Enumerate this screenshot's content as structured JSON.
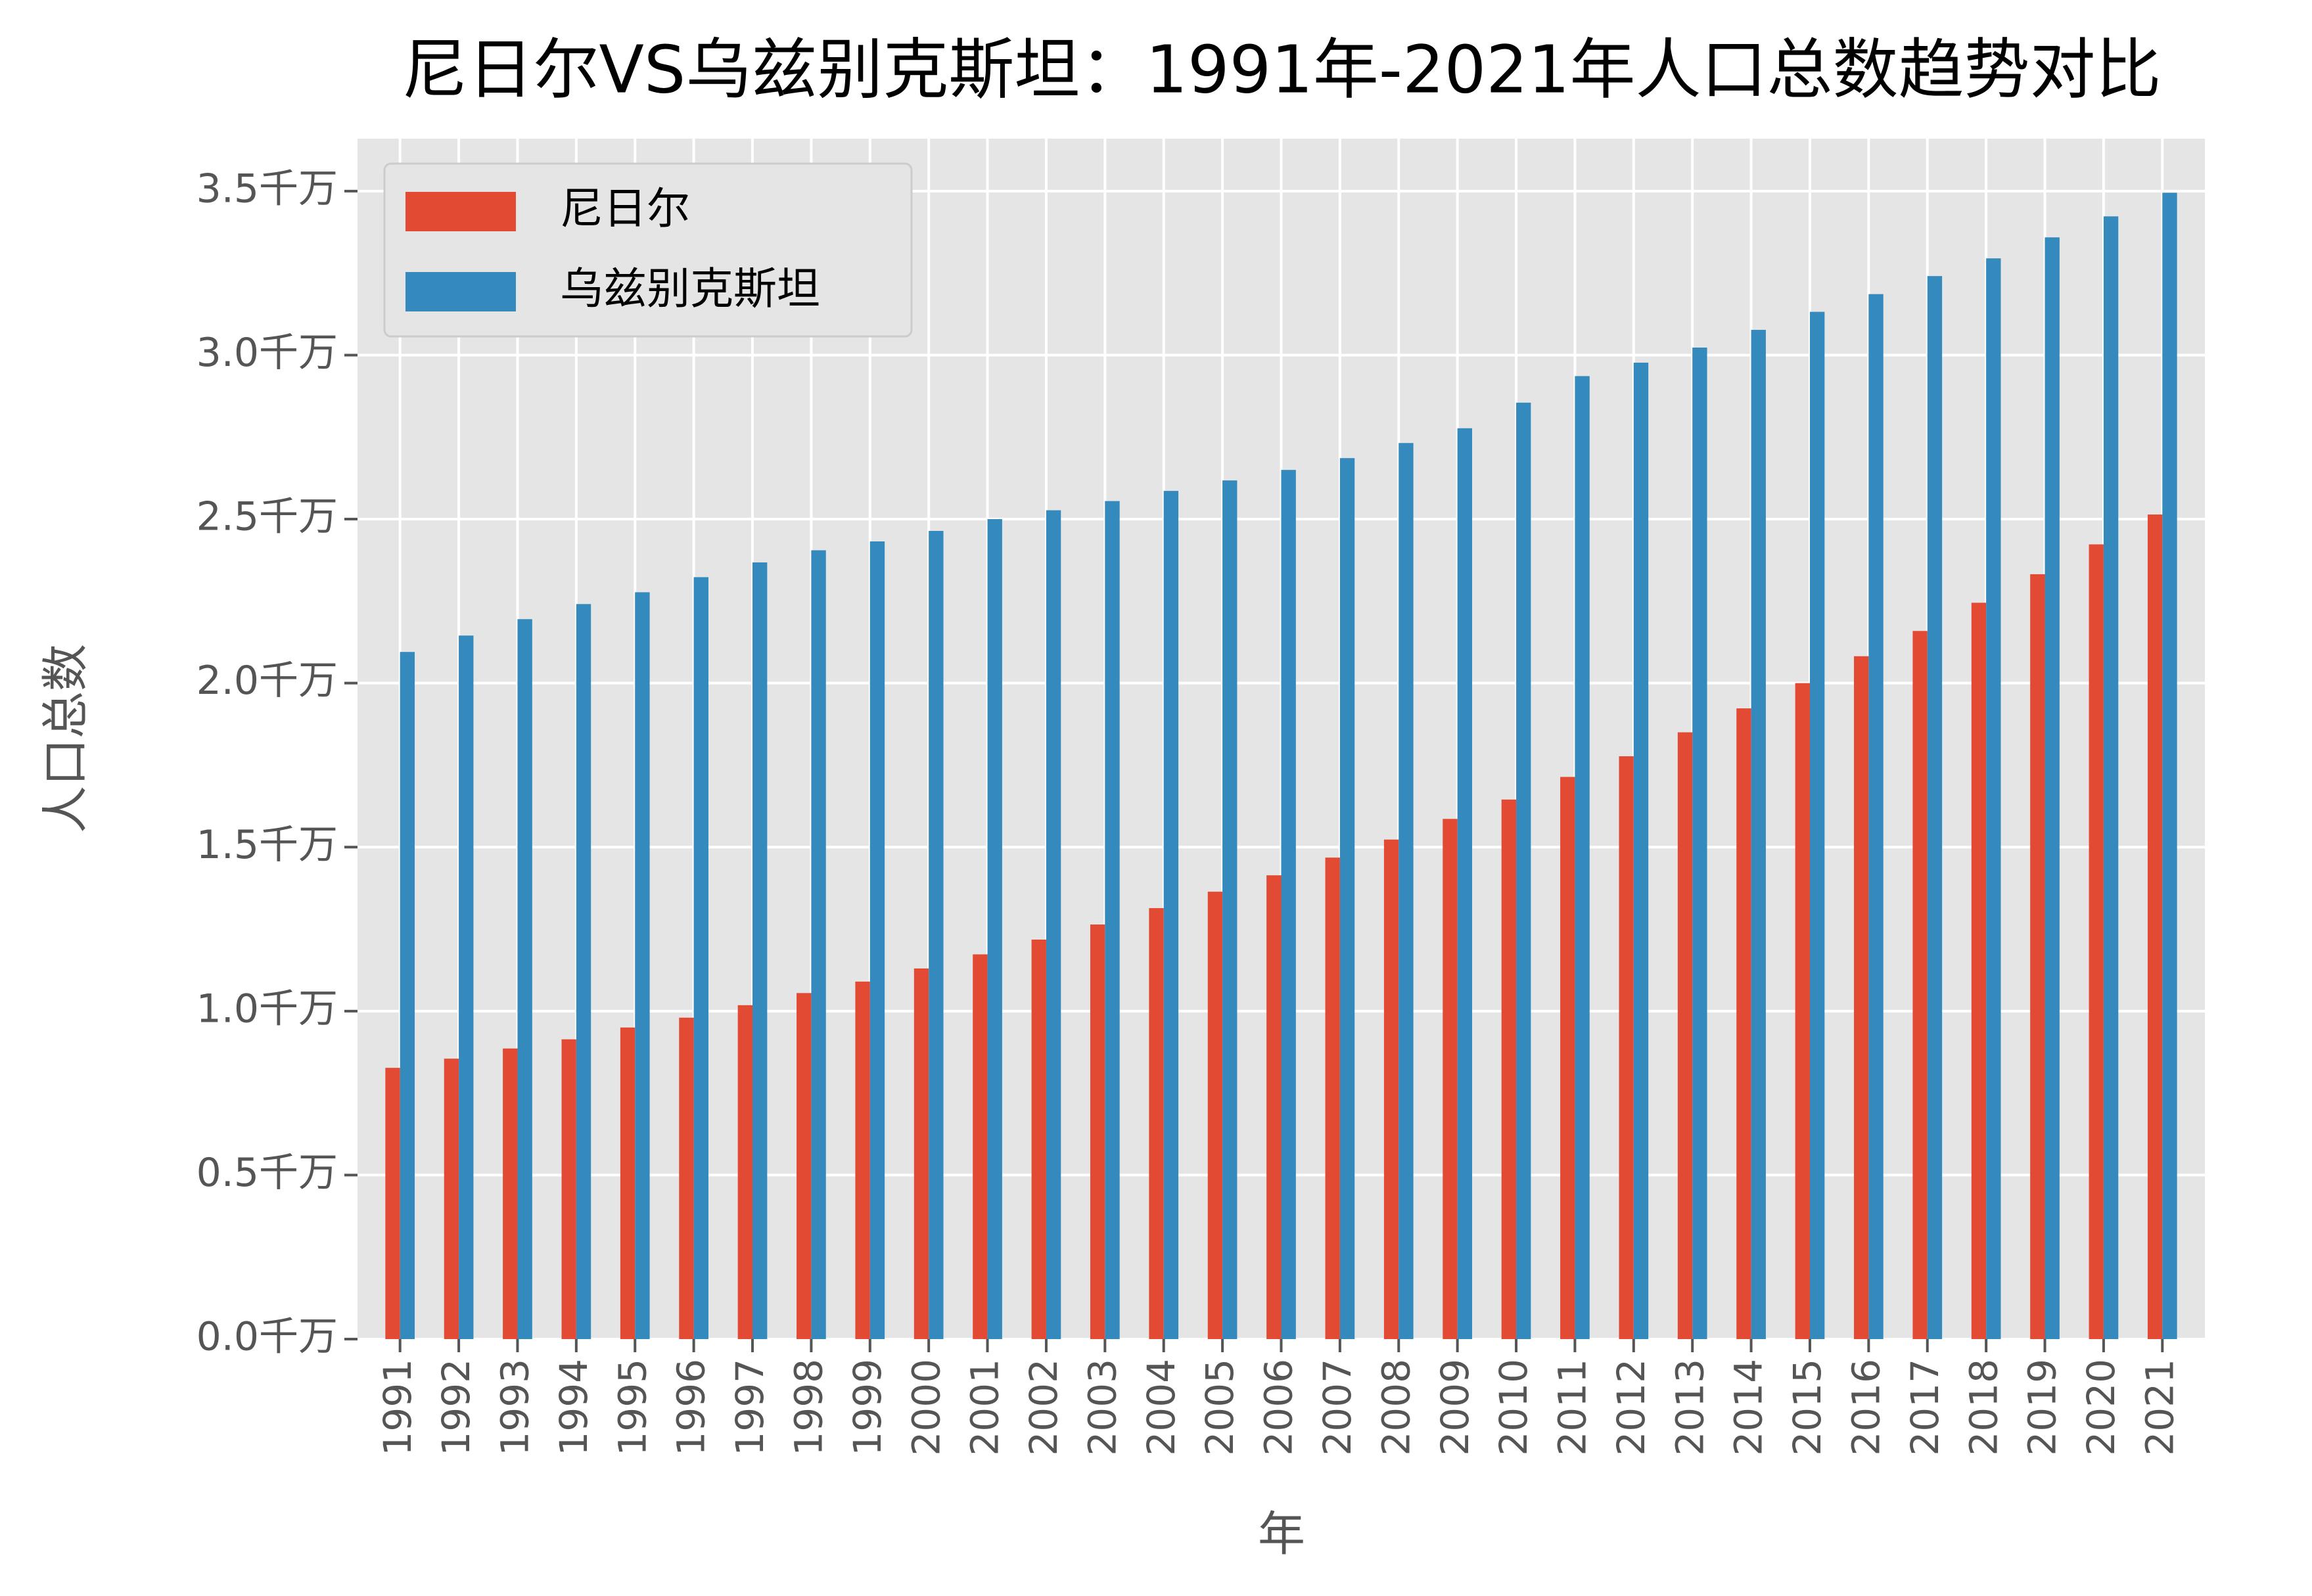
{
  "chart_data": {
    "type": "bar",
    "title": "尼日尔VS乌兹别克斯坦：1991年-2021年人口总数趋势对比",
    "x_label": "年",
    "y_label": "人口总数",
    "categories": [
      "1991",
      "1992",
      "1993",
      "1994",
      "1995",
      "1996",
      "1997",
      "1998",
      "1999",
      "2000",
      "2001",
      "2002",
      "2003",
      "2004",
      "2005",
      "2006",
      "2007",
      "2008",
      "2009",
      "2010",
      "2011",
      "2012",
      "2013",
      "2014",
      "2015",
      "2016",
      "2017",
      "2018",
      "2019",
      "2020",
      "2021"
    ],
    "series": [
      {
        "name": "尼日尔",
        "color": "#e24a33",
        "values": [
          0.827,
          0.855,
          0.886,
          0.914,
          0.95,
          0.98,
          1.018,
          1.055,
          1.09,
          1.13,
          1.173,
          1.218,
          1.264,
          1.314,
          1.364,
          1.414,
          1.468,
          1.523,
          1.586,
          1.645,
          1.714,
          1.777,
          1.85,
          1.923,
          2.0,
          2.082,
          2.159,
          2.245,
          2.332,
          2.423,
          2.514
        ]
      },
      {
        "name": "乌兹别克斯坦",
        "color": "#348abd",
        "values": [
          2.095,
          2.145,
          2.195,
          2.241,
          2.277,
          2.323,
          2.368,
          2.405,
          2.432,
          2.464,
          2.5,
          2.527,
          2.555,
          2.586,
          2.618,
          2.65,
          2.686,
          2.732,
          2.777,
          2.855,
          2.936,
          2.977,
          3.023,
          3.077,
          3.132,
          3.186,
          3.241,
          3.295,
          3.359,
          3.423,
          3.495
        ]
      }
    ],
    "ylim": [
      0,
      3.66
    ],
    "yticks": [
      {
        "value": 0,
        "label": "0.0千万"
      },
      {
        "value": 0.5,
        "label": "0.5千万"
      },
      {
        "value": 1,
        "label": "1.0千万"
      },
      {
        "value": 1.5,
        "label": "1.5千万"
      },
      {
        "value": 2,
        "label": "2.0千万"
      },
      {
        "value": 2.5,
        "label": "2.5千万"
      },
      {
        "value": 3,
        "label": "3.0千万"
      },
      {
        "value": 3.5,
        "label": "3.5千万"
      }
    ],
    "grid": true,
    "legend": "upper left"
  }
}
